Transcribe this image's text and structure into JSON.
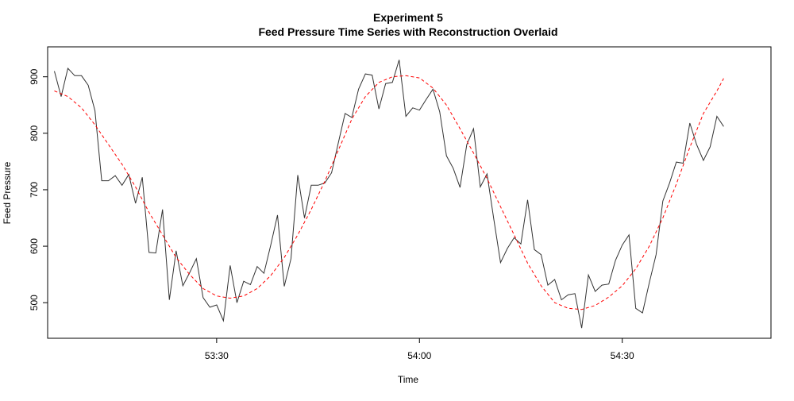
{
  "chart_data": {
    "type": "line",
    "title": "Experiment 5",
    "subtitle": "Feed Pressure Time Series with Reconstruction Overlaid",
    "xlabel": "Time",
    "ylabel": "Feed Pressure",
    "x_tick_labels": [
      {
        "t": "53:30",
        "label": "53:30"
      },
      {
        "t": "54:00",
        "label": "54:00"
      },
      {
        "t": "54:30",
        "label": "54:30"
      }
    ],
    "y_ticks": [
      500,
      600,
      700,
      800,
      900
    ],
    "xlim": [
      "53:05",
      "54:52"
    ],
    "ylim": [
      437,
      953
    ],
    "grid": false,
    "legend": "none",
    "series": [
      {
        "color": "#333333",
        "line_style": "solid",
        "points": [
          {
            "t": "53:06",
            "y": 910
          },
          {
            "t": "53:07",
            "y": 865
          },
          {
            "t": "53:08",
            "y": 915
          },
          {
            "t": "53:09",
            "y": 902
          },
          {
            "t": "53:10",
            "y": 902
          },
          {
            "t": "53:11",
            "y": 885
          },
          {
            "t": "53:12",
            "y": 840
          },
          {
            "t": "53:13",
            "y": 716
          },
          {
            "t": "53:14",
            "y": 716
          },
          {
            "t": "53:15",
            "y": 725
          },
          {
            "t": "53:16",
            "y": 708
          },
          {
            "t": "53:17",
            "y": 727
          },
          {
            "t": "53:18",
            "y": 676
          },
          {
            "t": "53:19",
            "y": 722
          },
          {
            "t": "53:20",
            "y": 589
          },
          {
            "t": "53:21",
            "y": 588
          },
          {
            "t": "53:22",
            "y": 665
          },
          {
            "t": "53:23",
            "y": 505
          },
          {
            "t": "53:24",
            "y": 592
          },
          {
            "t": "53:25",
            "y": 530
          },
          {
            "t": "53:26",
            "y": 553
          },
          {
            "t": "53:27",
            "y": 578
          },
          {
            "t": "53:28",
            "y": 509
          },
          {
            "t": "53:29",
            "y": 492
          },
          {
            "t": "53:30",
            "y": 496
          },
          {
            "t": "53:31",
            "y": 468
          },
          {
            "t": "53:32",
            "y": 566
          },
          {
            "t": "53:33",
            "y": 500
          },
          {
            "t": "53:34",
            "y": 538
          },
          {
            "t": "53:35",
            "y": 532
          },
          {
            "t": "53:36",
            "y": 564
          },
          {
            "t": "53:37",
            "y": 552
          },
          {
            "t": "53:38",
            "y": 602
          },
          {
            "t": "53:39",
            "y": 655
          },
          {
            "t": "53:40",
            "y": 529
          },
          {
            "t": "53:41",
            "y": 578
          },
          {
            "t": "53:42",
            "y": 726
          },
          {
            "t": "53:43",
            "y": 650
          },
          {
            "t": "53:44",
            "y": 708
          },
          {
            "t": "53:45",
            "y": 708
          },
          {
            "t": "53:46",
            "y": 712
          },
          {
            "t": "53:47",
            "y": 730
          },
          {
            "t": "53:48",
            "y": 783
          },
          {
            "t": "53:49",
            "y": 835
          },
          {
            "t": "53:50",
            "y": 828
          },
          {
            "t": "53:51",
            "y": 878
          },
          {
            "t": "53:52",
            "y": 905
          },
          {
            "t": "53:53",
            "y": 903
          },
          {
            "t": "53:54",
            "y": 843
          },
          {
            "t": "53:55",
            "y": 888
          },
          {
            "t": "53:56",
            "y": 890
          },
          {
            "t": "53:57",
            "y": 930
          },
          {
            "t": "53:58",
            "y": 830
          },
          {
            "t": "53:59",
            "y": 845
          },
          {
            "t": "54:00",
            "y": 841
          },
          {
            "t": "54:01",
            "y": 860
          },
          {
            "t": "54:02",
            "y": 878
          },
          {
            "t": "54:03",
            "y": 838
          },
          {
            "t": "54:04",
            "y": 760
          },
          {
            "t": "54:05",
            "y": 738
          },
          {
            "t": "54:06",
            "y": 704
          },
          {
            "t": "54:07",
            "y": 780
          },
          {
            "t": "54:08",
            "y": 808
          },
          {
            "t": "54:09",
            "y": 705
          },
          {
            "t": "54:10",
            "y": 728
          },
          {
            "t": "54:11",
            "y": 648
          },
          {
            "t": "54:12",
            "y": 571
          },
          {
            "t": "54:13",
            "y": 596
          },
          {
            "t": "54:14",
            "y": 615
          },
          {
            "t": "54:15",
            "y": 604
          },
          {
            "t": "54:16",
            "y": 682
          },
          {
            "t": "54:17",
            "y": 594
          },
          {
            "t": "54:18",
            "y": 585
          },
          {
            "t": "54:19",
            "y": 531
          },
          {
            "t": "54:20",
            "y": 541
          },
          {
            "t": "54:21",
            "y": 505
          },
          {
            "t": "54:22",
            "y": 514
          },
          {
            "t": "54:23",
            "y": 516
          },
          {
            "t": "54:24",
            "y": 455
          },
          {
            "t": "54:25",
            "y": 549
          },
          {
            "t": "54:26",
            "y": 520
          },
          {
            "t": "54:27",
            "y": 531
          },
          {
            "t": "54:28",
            "y": 533
          },
          {
            "t": "54:29",
            "y": 575
          },
          {
            "t": "54:30",
            "y": 602
          },
          {
            "t": "54:31",
            "y": 620
          },
          {
            "t": "54:32",
            "y": 490
          },
          {
            "t": "54:33",
            "y": 482
          },
          {
            "t": "54:34",
            "y": 535
          },
          {
            "t": "54:35",
            "y": 585
          },
          {
            "t": "54:36",
            "y": 680
          },
          {
            "t": "54:37",
            "y": 712
          },
          {
            "t": "54:38",
            "y": 749
          },
          {
            "t": "54:39",
            "y": 747
          },
          {
            "t": "54:40",
            "y": 818
          },
          {
            "t": "54:41",
            "y": 780
          },
          {
            "t": "54:42",
            "y": 752
          },
          {
            "t": "54:43",
            "y": 776
          },
          {
            "t": "54:44",
            "y": 830
          },
          {
            "t": "54:45",
            "y": 812
          }
        ]
      },
      {
        "color": "#ff0000",
        "line_style": "dashed",
        "points": [
          {
            "t": "53:06",
            "y": 875
          },
          {
            "t": "53:08",
            "y": 865
          },
          {
            "t": "53:10",
            "y": 845
          },
          {
            "t": "53:12",
            "y": 815
          },
          {
            "t": "53:14",
            "y": 780
          },
          {
            "t": "53:16",
            "y": 745
          },
          {
            "t": "53:18",
            "y": 705
          },
          {
            "t": "53:20",
            "y": 660
          },
          {
            "t": "53:22",
            "y": 620
          },
          {
            "t": "53:24",
            "y": 580
          },
          {
            "t": "53:26",
            "y": 550
          },
          {
            "t": "53:28",
            "y": 525
          },
          {
            "t": "53:30",
            "y": 512
          },
          {
            "t": "53:32",
            "y": 508
          },
          {
            "t": "53:34",
            "y": 512
          },
          {
            "t": "53:36",
            "y": 525
          },
          {
            "t": "53:38",
            "y": 548
          },
          {
            "t": "53:40",
            "y": 580
          },
          {
            "t": "53:42",
            "y": 620
          },
          {
            "t": "53:44",
            "y": 665
          },
          {
            "t": "53:46",
            "y": 715
          },
          {
            "t": "53:48",
            "y": 770
          },
          {
            "t": "53:50",
            "y": 825
          },
          {
            "t": "53:52",
            "y": 865
          },
          {
            "t": "53:54",
            "y": 890
          },
          {
            "t": "53:56",
            "y": 900
          },
          {
            "t": "53:58",
            "y": 902
          },
          {
            "t": "54:00",
            "y": 898
          },
          {
            "t": "54:02",
            "y": 880
          },
          {
            "t": "54:04",
            "y": 850
          },
          {
            "t": "54:06",
            "y": 808
          },
          {
            "t": "54:08",
            "y": 765
          },
          {
            "t": "54:10",
            "y": 720
          },
          {
            "t": "54:12",
            "y": 670
          },
          {
            "t": "54:14",
            "y": 620
          },
          {
            "t": "54:16",
            "y": 570
          },
          {
            "t": "54:18",
            "y": 530
          },
          {
            "t": "54:20",
            "y": 500
          },
          {
            "t": "54:22",
            "y": 490
          },
          {
            "t": "54:24",
            "y": 488
          },
          {
            "t": "54:26",
            "y": 495
          },
          {
            "t": "54:28",
            "y": 510
          },
          {
            "t": "54:30",
            "y": 530
          },
          {
            "t": "54:32",
            "y": 560
          },
          {
            "t": "54:34",
            "y": 600
          },
          {
            "t": "54:36",
            "y": 650
          },
          {
            "t": "54:38",
            "y": 710
          },
          {
            "t": "54:40",
            "y": 775
          },
          {
            "t": "54:42",
            "y": 835
          },
          {
            "t": "54:44",
            "y": 875
          },
          {
            "t": "54:45",
            "y": 897
          }
        ]
      }
    ]
  }
}
